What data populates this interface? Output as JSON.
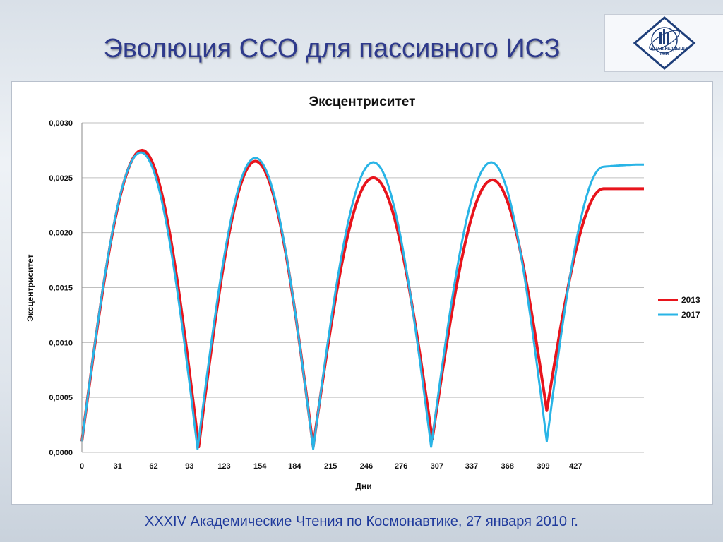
{
  "slide": {
    "title": "Эволюция ССО для пассивного ИСЗ",
    "footer": "XXXIV  Академические Чтения по Космонавтике,  27 января 2010 г.",
    "logo_text": "ин.М.В.КЕЛДЫША РАН"
  },
  "colors": {
    "title": "#2e3a8c",
    "footer": "#1f3a9c",
    "series_2013": "#e8141c",
    "series_2017": "#29b4e6",
    "grid": "#bfbfbf"
  },
  "chart_data": {
    "type": "line",
    "title": "Эксцентриситет",
    "xlabel": "Дни",
    "ylabel": "Эксцентриситет",
    "xlim": [
      0,
      486
    ],
    "ylim": [
      0,
      0.003
    ],
    "grid": true,
    "legend_position": "right",
    "x_ticks": [
      "0",
      "31",
      "62",
      "93",
      "123",
      "154",
      "184",
      "215",
      "246",
      "276",
      "307",
      "337",
      "368",
      "399",
      "427"
    ],
    "x_tick_values": [
      0,
      31,
      62,
      93,
      123,
      154,
      184,
      215,
      246,
      276,
      307,
      337,
      368,
      399,
      427
    ],
    "y_ticks": [
      "0,0030",
      "0,0025",
      "0,0020",
      "0,0015",
      "0,0010",
      "0,0005",
      "0,0000"
    ],
    "y_tick_values": [
      0.003,
      0.0025,
      0.002,
      0.0015,
      0.001,
      0.0005,
      0
    ],
    "series": [
      {
        "name": "2013",
        "color": "#e8141c",
        "x": [
          0,
          52,
          101,
          150,
          200,
          252,
          303,
          355,
          402,
          451,
          486
        ],
        "y": [
          0.0001,
          0.00275,
          5e-05,
          0.00265,
          5e-05,
          0.0025,
          0.00012,
          0.00248,
          0.00038,
          0.0024,
          0.0024
        ]
      },
      {
        "name": "2017",
        "color": "#29b4e6",
        "x": [
          0,
          51,
          100,
          150,
          200,
          252,
          302,
          354,
          402,
          451,
          486
        ],
        "y": [
          0.0001,
          0.00273,
          3e-05,
          0.00268,
          3e-05,
          0.00264,
          5e-05,
          0.00264,
          0.0001,
          0.0026,
          0.00262
        ]
      }
    ]
  }
}
